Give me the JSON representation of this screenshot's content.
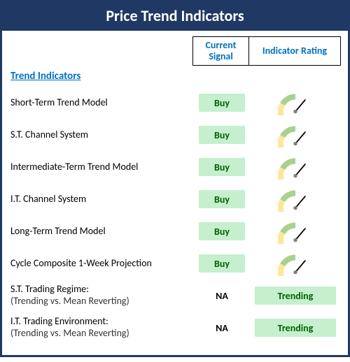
{
  "title": "Price Trend Indicators",
  "colors": {
    "frame": "#1f3864",
    "title_text": "#ffffff",
    "header_text": "#0070c0",
    "section_text": "#0070c0",
    "buy_bg": "#c6efce",
    "buy_text": "#006100",
    "trending_bg": "#c6efce",
    "trending_text": "#006100",
    "gauge_red": "#f4a6a6",
    "gauge_yellow": "#ffe699",
    "gauge_green": "#a9d18e",
    "gauge_needle": "#000000",
    "gauge_hub": "#808080"
  },
  "header": {
    "current_signal": "Current Signal",
    "indicator_rating": "Indicator Rating"
  },
  "section_label": "Trend Indicators",
  "rows": [
    {
      "label": "Short-Term Trend Model",
      "signal": "Buy",
      "signal_style": "buy",
      "rating_type": "gauge",
      "needle_angle": 40
    },
    {
      "label": "S.T. Channel System",
      "signal": "Buy",
      "signal_style": "buy",
      "rating_type": "gauge",
      "needle_angle": 40
    },
    {
      "label": "Intermediate-Term Trend Model",
      "signal": "Buy",
      "signal_style": "buy",
      "rating_type": "gauge",
      "needle_angle": 40
    },
    {
      "label": "I.T. Channel System",
      "signal": "Buy",
      "signal_style": "buy",
      "rating_type": "gauge",
      "needle_angle": 40
    },
    {
      "label": "Long-Term Trend Model",
      "signal": "Buy",
      "signal_style": "buy",
      "rating_type": "gauge",
      "needle_angle": 40
    },
    {
      "label": "Cycle Composite 1-Week Projection",
      "signal": "Buy",
      "signal_style": "buy",
      "rating_type": "gauge",
      "needle_angle": 40
    },
    {
      "label": "S.T. Trading Regime:",
      "sublabel": "(Trending vs. Mean Reverting)",
      "signal": "NA",
      "signal_style": "na",
      "rating_type": "pill",
      "rating_text": "Trending"
    },
    {
      "label": "I.T. Trading Environment:",
      "sublabel": "(Trending vs. Mean Reverting)",
      "signal": "NA",
      "signal_style": "na",
      "rating_type": "pill",
      "rating_text": "Trending"
    }
  ],
  "gauge": {
    "needle_length": 24,
    "hub_radius": 3,
    "segment_width": 9
  }
}
